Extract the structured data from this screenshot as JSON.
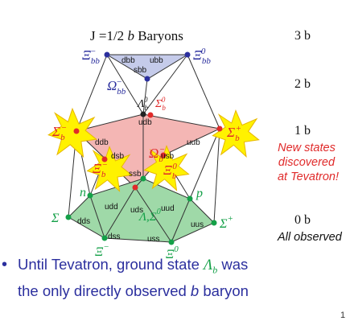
{
  "title": {
    "prefix": "J =1/2 ",
    "b": "b",
    "suffix": " Baryons"
  },
  "levels": [
    {
      "label": "3 b"
    },
    {
      "label": "2 b"
    },
    {
      "label": "1 b"
    },
    {
      "label": "0 b"
    }
  ],
  "callouts": {
    "new_states": [
      "New states",
      "discovered",
      "at Tevatron!"
    ],
    "all_observed": "All observed"
  },
  "particles": {
    "xi_bb_minus": {
      "sym": "Ξ",
      "sub": "bb",
      "sup": "−"
    },
    "xi_bb_zero": {
      "sym": "Ξ",
      "sub": "bb",
      "sup": "0"
    },
    "omega_bb": {
      "sym": "Ω",
      "sub": "bb",
      "sup": "−"
    },
    "lambda_b": {
      "sym": "Λ",
      "sub": "b",
      "sup": "0"
    },
    "sigma_b_zero": {
      "sym": "Σ",
      "sub": "b",
      "sup": "0"
    },
    "sigma_b_minus": {
      "sym": "Σ",
      "sub": "b",
      "sup": "−"
    },
    "sigma_b_plus": {
      "sym": "Σ",
      "sub": "b",
      "sup": "+"
    },
    "xi_b_minus": {
      "sym": "Ξ",
      "sub": "b",
      "sup": "−"
    },
    "xi_b_zero": {
      "sym": "Ξ",
      "sub": "b",
      "sup": "0"
    },
    "omega_b": {
      "sym": "Ω",
      "sub": "b",
      "sup": "−"
    },
    "n": {
      "sym": "n"
    },
    "p": {
      "sym": "p"
    },
    "sigma_minus": {
      "sym": "Σ",
      "sup": "−"
    },
    "sigma_plus": {
      "sym": "Σ",
      "sup": "+"
    },
    "lambda_sigma0": {
      "sym": "Λ,Σ",
      "sup": "0"
    },
    "xi_minus": {
      "sym": "Ξ",
      "sup": "−"
    },
    "xi_zero": {
      "sym": "Ξ",
      "sup": "0"
    }
  },
  "quarks": {
    "dbb": "dbb",
    "ubb": "ubb",
    "sbb": "sbb",
    "udc": "udb",
    "ddb": "ddb",
    "uub": "uub",
    "dsb": "dsb",
    "usb": "usb",
    "ssb": "ssb",
    "udd": "udd",
    "uud": "uud",
    "uds": "uds",
    "dds": "dds",
    "uus": "uus",
    "dss": "dss",
    "uss": "uss"
  },
  "bullet": {
    "dot": "•",
    "line1_pre": "Until Tevatron, ground state ",
    "line1_sym": "Λ",
    "line1_sub": "b",
    "line1_post": " was",
    "line2_pre": "the only directly observed ",
    "line2_b": "b",
    "line2_post": " baryon"
  },
  "page_number": "1",
  "colors": {
    "red": "#e02a2a",
    "blue": "#2b2f9e",
    "green": "#14a048",
    "star": "#fff200",
    "top_fill": "#c5cbea",
    "mid_fill": "#f4b6b4",
    "bottom_fill": "#9fd9a8"
  }
}
